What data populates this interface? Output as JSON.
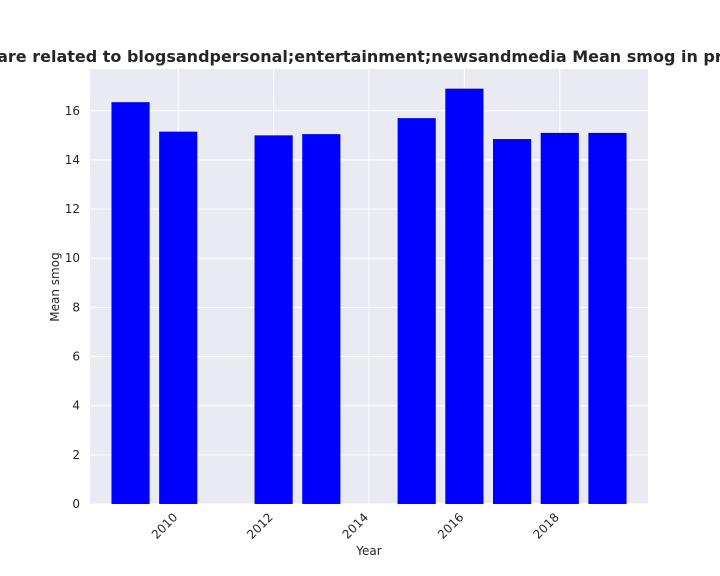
{
  "chart_data": {
    "type": "bar",
    "title": "Categories are related to blogsandpersonal;entertainment;newsandmedia Mean smog in privacy policies",
    "xlabel": "Year",
    "ylabel": "Mean smog",
    "x": [
      2009,
      2010,
      2012,
      2013,
      2015,
      2016,
      2017,
      2018,
      2019
    ],
    "values": [
      16.35,
      15.15,
      15.0,
      15.05,
      15.7,
      16.9,
      14.85,
      15.1,
      15.1
    ],
    "xticks": [
      2010,
      2012,
      2014,
      2016,
      2018
    ],
    "yticks": [
      0,
      2,
      4,
      6,
      8,
      10,
      12,
      14,
      16
    ],
    "xlim": [
      2008.15,
      2019.85
    ],
    "ylim": [
      0,
      17.7
    ],
    "bar_color": "#0000ff",
    "plot_background": "#eaeaf2",
    "grid": true
  }
}
